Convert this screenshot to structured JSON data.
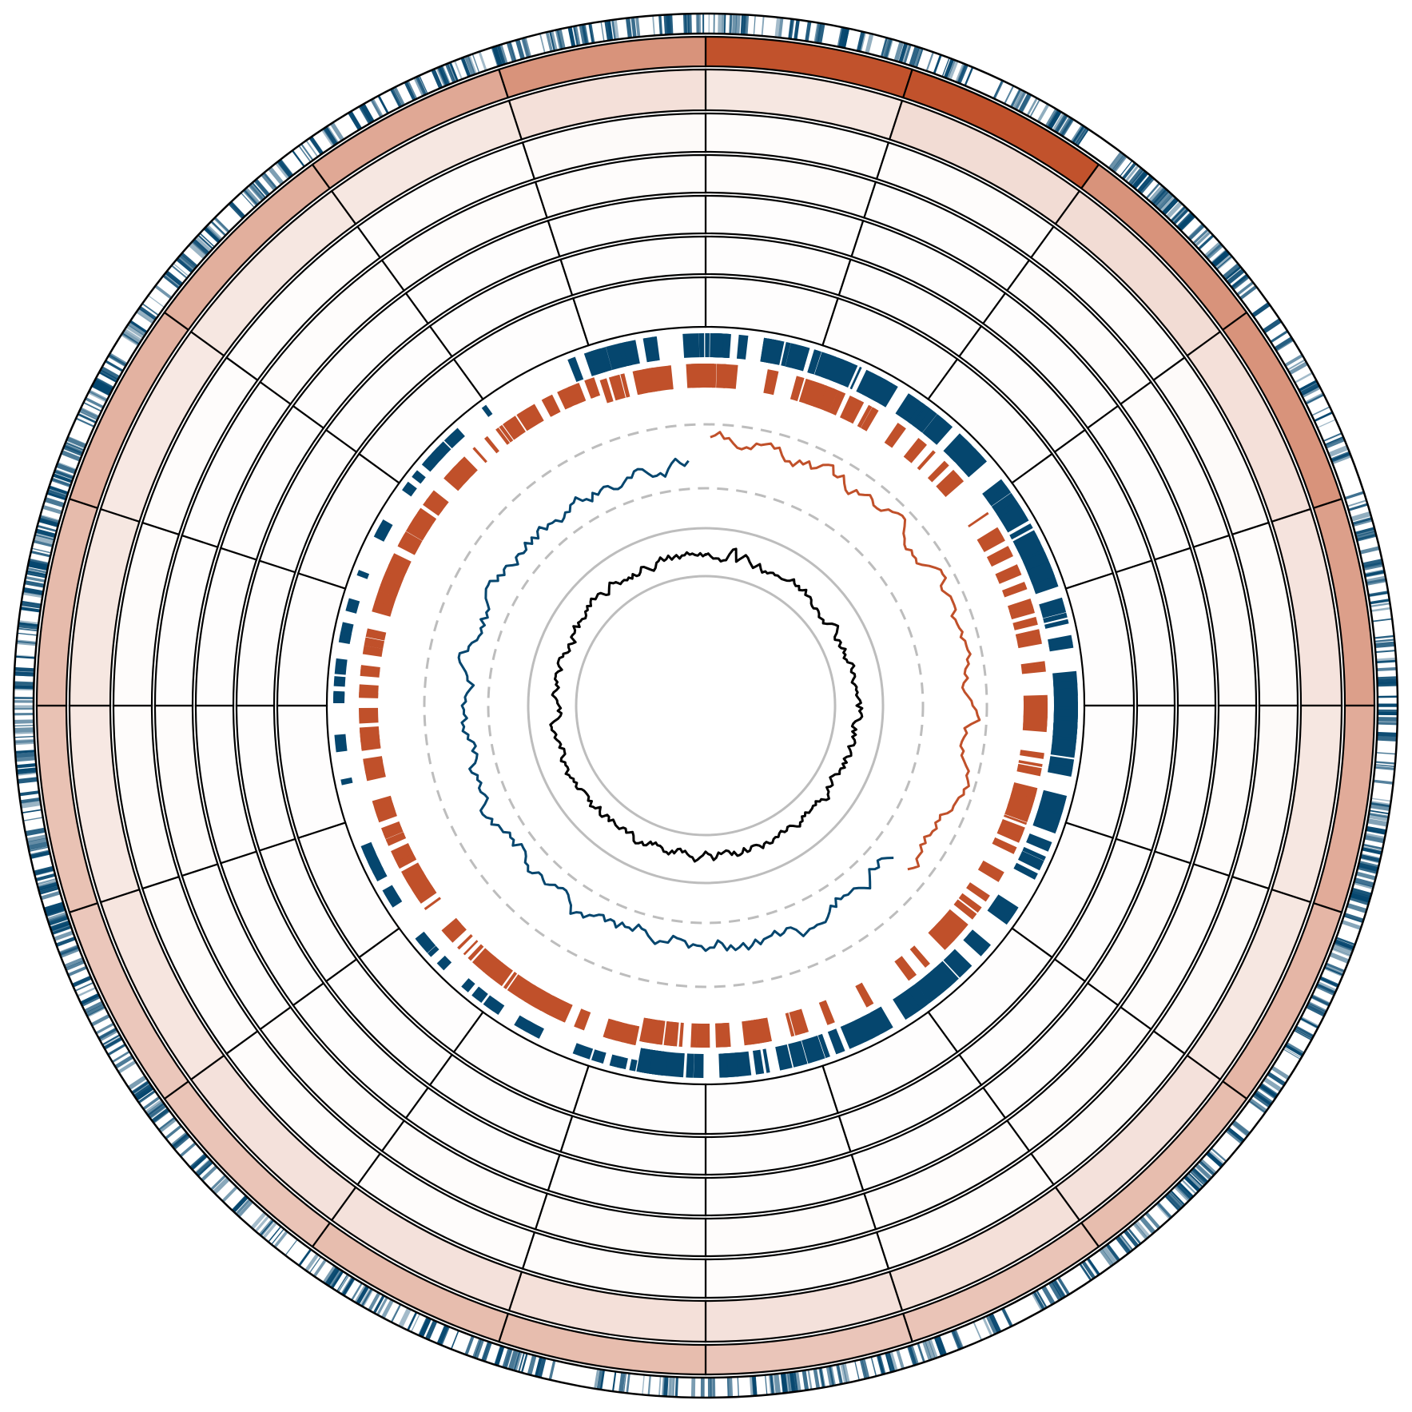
{
  "chart_data": {
    "type": "heatmap",
    "layout": "circular",
    "title": "",
    "segments_per_ring": 20,
    "colors": {
      "accent_blue": "#05466e",
      "accent_orange": "#c0502a",
      "heat_max": "#c0502a",
      "heat_min": "#ffffff",
      "line": "#000000",
      "guide": "#bdbdbd"
    },
    "heatmap_rings": [
      {
        "name": "",
        "values": [
          0.99,
          0.99,
          0.62,
          0.62,
          0.55,
          0.48,
          0.42,
          0.38,
          0.34,
          0.33,
          0.38,
          0.38,
          0.34,
          0.32,
          0.35,
          0.39,
          0.44,
          0.46,
          0.5,
          0.62
        ]
      },
      {
        "name": "",
        "values": [
          0.14,
          0.2,
          0.2,
          0.18,
          0.16,
          0.14,
          0.14,
          0.17,
          0.18,
          0.17,
          0.18,
          0.17,
          0.17,
          0.15,
          0.13,
          0.14,
          0.13,
          0.14,
          0.14,
          0.18
        ]
      },
      {
        "name": "",
        "values": [
          0.02,
          0.02,
          0.02,
          0.03,
          0.02,
          0.03,
          0.03,
          0.03,
          0.02,
          0.02,
          0.02,
          0.02,
          0.02,
          0.02,
          0.02,
          0.02,
          0.02,
          0.02,
          0.02,
          0.03
        ]
      },
      {
        "name": "",
        "values": [
          0.02,
          0.01,
          0.02,
          0.02,
          0.02,
          0.02,
          0.02,
          0.02,
          0.02,
          0.02,
          0.02,
          0.02,
          0.02,
          0.01,
          0.02,
          0.01,
          0.01,
          0.02,
          0.02,
          0.02
        ]
      },
      {
        "name": "",
        "values": [
          0.01,
          0.01,
          0.01,
          0.01,
          0.01,
          0.01,
          0.02,
          0.01,
          0.01,
          0.01,
          0.01,
          0.01,
          0.01,
          0.01,
          0.01,
          0.01,
          0.01,
          0.01,
          0.01,
          0.01
        ]
      },
      {
        "name": "",
        "values": [
          0.01,
          0.01,
          0.01,
          0.01,
          0.01,
          0.01,
          0.01,
          0.01,
          0.01,
          0.01,
          0.01,
          0.01,
          0.01,
          0.01,
          0.01,
          0.01,
          0.01,
          0.01,
          0.01,
          0.01
        ]
      },
      {
        "name": "",
        "values": [
          0.01,
          0.01,
          0.01,
          0.01,
          0.01,
          0.01,
          0.01,
          0.01,
          0.01,
          0.01,
          0.01,
          0.01,
          0.01,
          0.01,
          0.01,
          0.01,
          0.01,
          0.01,
          0.01,
          0.01
        ]
      }
    ],
    "outer_track": {
      "name": "",
      "type": "density_ticks",
      "count": 900
    },
    "feature_tracks": [
      {
        "name": "",
        "strand": "forward",
        "count": 260
      },
      {
        "name": "",
        "strand": "reverse",
        "count": 280
      }
    ],
    "skew_track": {
      "name": "",
      "type": "line",
      "points": 360,
      "positive_portion_end": 0.62
    },
    "content_track": {
      "name": "",
      "type": "line",
      "points": 360
    }
  }
}
